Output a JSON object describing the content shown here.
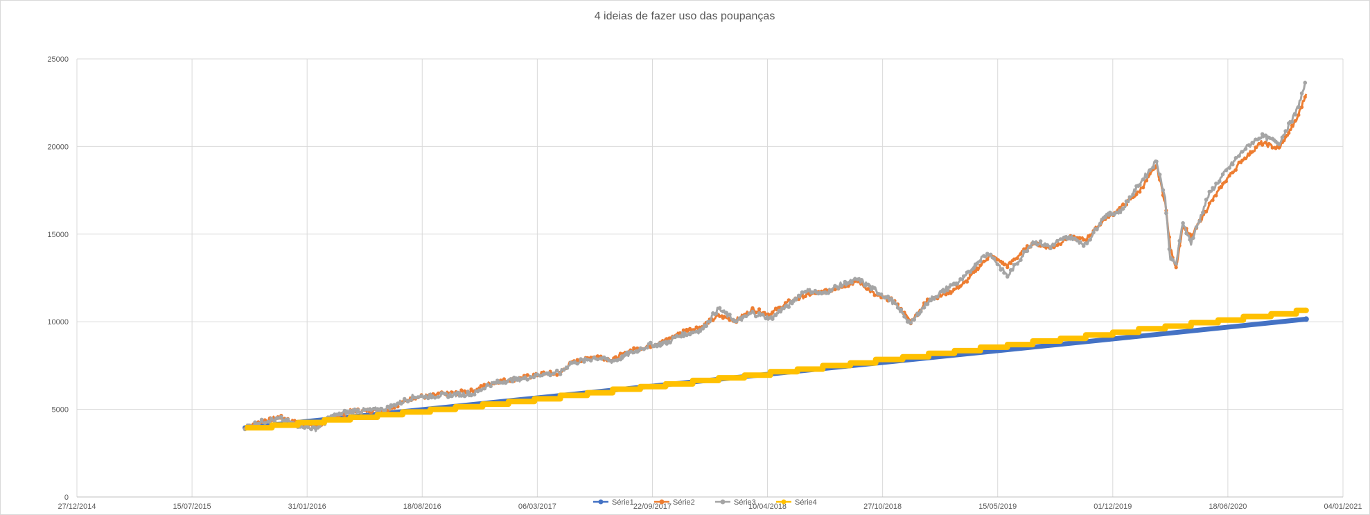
{
  "chart_data": {
    "type": "line",
    "title": "4 ideias de fazer uso das poupanças",
    "xlabel": "",
    "ylabel": "",
    "ylim": [
      0,
      25000
    ],
    "xlim": [
      "2014-12-27",
      "2021-01-04"
    ],
    "yticks": [
      0,
      5000,
      10000,
      15000,
      20000,
      25000
    ],
    "xticks": [
      "27/12/2014",
      "15/07/2015",
      "31/01/2016",
      "18/08/2016",
      "06/03/2017",
      "22/09/2017",
      "10/04/2018",
      "27/10/2018",
      "15/05/2019",
      "01/12/2019",
      "18/06/2020",
      "04/01/2021"
    ],
    "grid": true,
    "legend_position": "bottom",
    "series": [
      {
        "name": "Série1",
        "color": "#4472c4",
        "points": [
          [
            "2015-10-15",
            3950
          ],
          [
            "2020-11-01",
            10150
          ]
        ]
      },
      {
        "name": "Série2",
        "color": "#ed7d31",
        "points": [
          [
            "2015-10-15",
            3900
          ],
          [
            "2015-11-15",
            4350
          ],
          [
            "2015-12-15",
            4550
          ],
          [
            "2016-01-15",
            4200
          ],
          [
            "2016-02-15",
            4000
          ],
          [
            "2016-03-15",
            4500
          ],
          [
            "2016-04-15",
            4900
          ],
          [
            "2016-06-15",
            4950
          ],
          [
            "2016-08-01",
            5650
          ],
          [
            "2016-09-15",
            5850
          ],
          [
            "2016-11-15",
            6050
          ],
          [
            "2016-12-15",
            6500
          ],
          [
            "2017-02-15",
            6850
          ],
          [
            "2017-03-15",
            7050
          ],
          [
            "2017-04-15",
            7050
          ],
          [
            "2017-05-01",
            7600
          ],
          [
            "2017-06-15",
            8050
          ],
          [
            "2017-07-15",
            7850
          ],
          [
            "2017-08-15",
            8350
          ],
          [
            "2017-09-15",
            8600
          ],
          [
            "2017-10-15",
            8950
          ],
          [
            "2017-11-15",
            9450
          ],
          [
            "2017-12-15",
            9700
          ],
          [
            "2018-01-15",
            10350
          ],
          [
            "2018-02-15",
            10100
          ],
          [
            "2018-03-15",
            10700
          ],
          [
            "2018-04-15",
            10450
          ],
          [
            "2018-05-15",
            11100
          ],
          [
            "2018-06-15",
            11500
          ],
          [
            "2018-07-15",
            11700
          ],
          [
            "2018-08-15",
            12000
          ],
          [
            "2018-09-15",
            12300
          ],
          [
            "2018-10-15",
            11500
          ],
          [
            "2018-11-15",
            11200
          ],
          [
            "2018-12-15",
            10000
          ],
          [
            "2019-01-15",
            11300
          ],
          [
            "2019-02-15",
            11600
          ],
          [
            "2019-03-15",
            12100
          ],
          [
            "2019-04-15",
            13200
          ],
          [
            "2019-05-01",
            13800
          ],
          [
            "2019-06-01",
            13200
          ],
          [
            "2019-07-15",
            14500
          ],
          [
            "2019-08-15",
            14200
          ],
          [
            "2019-09-15",
            14800
          ],
          [
            "2019-10-15",
            14700
          ],
          [
            "2019-11-15",
            15800
          ],
          [
            "2019-12-15",
            16500
          ],
          [
            "2020-01-15",
            17400
          ],
          [
            "2020-02-15",
            18900
          ],
          [
            "2020-03-01",
            16800
          ],
          [
            "2020-03-10",
            14200
          ],
          [
            "2020-03-20",
            13100
          ],
          [
            "2020-04-01",
            15500
          ],
          [
            "2020-04-15",
            14800
          ],
          [
            "2020-05-15",
            16600
          ],
          [
            "2020-06-15",
            18100
          ],
          [
            "2020-07-15",
            19300
          ],
          [
            "2020-08-15",
            20200
          ],
          [
            "2020-09-15",
            19900
          ],
          [
            "2020-10-15",
            21500
          ],
          [
            "2020-11-01",
            23000
          ]
        ]
      },
      {
        "name": "Série3",
        "color": "#a5a5a5",
        "points": [
          [
            "2015-10-15",
            4000
          ],
          [
            "2015-11-15",
            4300
          ],
          [
            "2015-12-15",
            4450
          ],
          [
            "2016-01-15",
            4100
          ],
          [
            "2016-02-15",
            3900
          ],
          [
            "2016-03-15",
            4600
          ],
          [
            "2016-04-15",
            4900
          ],
          [
            "2016-06-15",
            5000
          ],
          [
            "2016-08-01",
            5700
          ],
          [
            "2016-09-15",
            5800
          ],
          [
            "2016-11-15",
            5900
          ],
          [
            "2016-12-15",
            6450
          ],
          [
            "2017-02-15",
            6800
          ],
          [
            "2017-03-15",
            7000
          ],
          [
            "2017-04-15",
            7100
          ],
          [
            "2017-05-01",
            7600
          ],
          [
            "2017-06-15",
            7950
          ],
          [
            "2017-07-15",
            7750
          ],
          [
            "2017-08-15",
            8200
          ],
          [
            "2017-09-15",
            8650
          ],
          [
            "2017-10-15",
            8800
          ],
          [
            "2017-11-15",
            9300
          ],
          [
            "2017-12-15",
            9500
          ],
          [
            "2018-01-15",
            10750
          ],
          [
            "2018-02-15",
            10000
          ],
          [
            "2018-03-15",
            10500
          ],
          [
            "2018-04-15",
            10200
          ],
          [
            "2018-05-15",
            10900
          ],
          [
            "2018-06-15",
            11800
          ],
          [
            "2018-07-15",
            11600
          ],
          [
            "2018-08-15",
            12100
          ],
          [
            "2018-09-15",
            12400
          ],
          [
            "2018-10-15",
            11800
          ],
          [
            "2018-11-15",
            11100
          ],
          [
            "2018-12-15",
            9900
          ],
          [
            "2019-01-15",
            11200
          ],
          [
            "2019-02-15",
            11900
          ],
          [
            "2019-03-15",
            12400
          ],
          [
            "2019-04-15",
            13600
          ],
          [
            "2019-05-01",
            13900
          ],
          [
            "2019-06-01",
            12600
          ],
          [
            "2019-07-15",
            14600
          ],
          [
            "2019-08-15",
            14300
          ],
          [
            "2019-09-15",
            14900
          ],
          [
            "2019-10-15",
            14400
          ],
          [
            "2019-11-15",
            16000
          ],
          [
            "2019-12-15",
            16300
          ],
          [
            "2020-01-15",
            17800
          ],
          [
            "2020-02-15",
            19200
          ],
          [
            "2020-03-01",
            17000
          ],
          [
            "2020-03-10",
            13600
          ],
          [
            "2020-03-20",
            13300
          ],
          [
            "2020-04-01",
            15700
          ],
          [
            "2020-04-15",
            14500
          ],
          [
            "2020-05-15",
            17200
          ],
          [
            "2020-06-15",
            18600
          ],
          [
            "2020-07-15",
            19800
          ],
          [
            "2020-08-15",
            20600
          ],
          [
            "2020-09-15",
            20200
          ],
          [
            "2020-10-15",
            22000
          ],
          [
            "2020-11-01",
            23700
          ]
        ]
      },
      {
        "name": "Série4",
        "color": "#ffc000",
        "step_points": [
          [
            "2015-10-15",
            3950
          ],
          [
            "2015-12-01",
            4100
          ],
          [
            "2016-01-15",
            4250
          ],
          [
            "2016-03-01",
            4400
          ],
          [
            "2016-04-15",
            4550
          ],
          [
            "2016-06-01",
            4700
          ],
          [
            "2016-07-15",
            4850
          ],
          [
            "2016-09-01",
            5000
          ],
          [
            "2016-10-15",
            5150
          ],
          [
            "2016-12-01",
            5300
          ],
          [
            "2017-01-15",
            5450
          ],
          [
            "2017-03-01",
            5600
          ],
          [
            "2017-04-15",
            5800
          ],
          [
            "2017-06-01",
            5950
          ],
          [
            "2017-07-15",
            6150
          ],
          [
            "2017-09-01",
            6300
          ],
          [
            "2017-10-15",
            6450
          ],
          [
            "2017-12-01",
            6650
          ],
          [
            "2018-01-15",
            6800
          ],
          [
            "2018-03-01",
            6950
          ],
          [
            "2018-04-15",
            7150
          ],
          [
            "2018-06-01",
            7300
          ],
          [
            "2018-07-15",
            7500
          ],
          [
            "2018-09-01",
            7650
          ],
          [
            "2018-10-15",
            7850
          ],
          [
            "2018-12-01",
            8000
          ],
          [
            "2019-01-15",
            8200
          ],
          [
            "2019-03-01",
            8350
          ],
          [
            "2019-04-15",
            8550
          ],
          [
            "2019-06-01",
            8700
          ],
          [
            "2019-07-15",
            8900
          ],
          [
            "2019-09-01",
            9050
          ],
          [
            "2019-10-15",
            9250
          ],
          [
            "2019-12-01",
            9400
          ],
          [
            "2020-01-15",
            9600
          ],
          [
            "2020-03-01",
            9750
          ],
          [
            "2020-04-15",
            9950
          ],
          [
            "2020-06-01",
            10100
          ],
          [
            "2020-07-15",
            10300
          ],
          [
            "2020-09-01",
            10450
          ],
          [
            "2020-10-15",
            10650
          ],
          [
            "2020-11-01",
            10650
          ]
        ]
      }
    ]
  }
}
